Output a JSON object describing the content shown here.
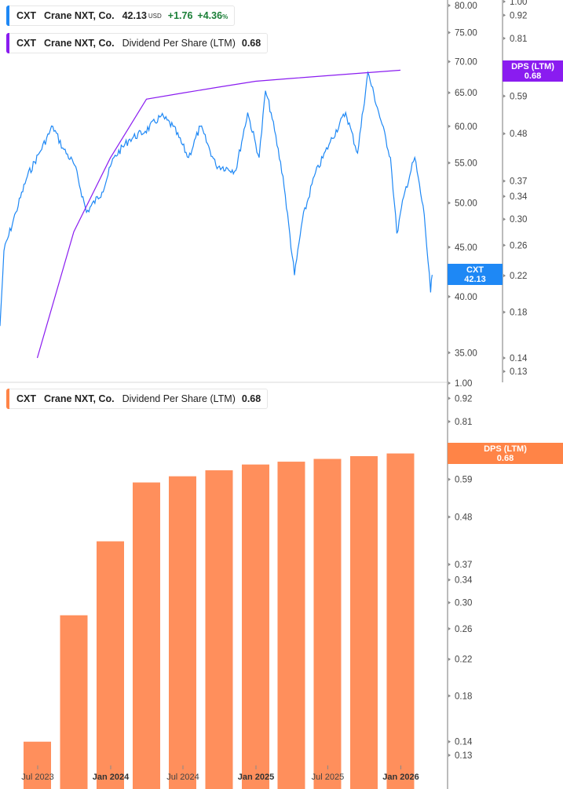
{
  "legend_price": {
    "ticker": "CXT",
    "company": "Crane NXT, Co.",
    "price": "42.13",
    "currency": "USD",
    "change": "+1.76",
    "change_pct": "+4.36",
    "pct_sign": "%"
  },
  "legend_dps_top": {
    "ticker": "CXT",
    "company": "Crane NXT, Co.",
    "metric": "Dividend Per Share (LTM)",
    "value": "0.68"
  },
  "legend_dps_bottom": {
    "ticker": "CXT",
    "company": "Crane NXT, Co.",
    "metric": "Dividend Per Share (LTM)",
    "value": "0.68"
  },
  "tags": {
    "price": {
      "line1": "CXT",
      "line2": "42.13"
    },
    "dps_top": {
      "line1": "DPS (LTM)",
      "line2": "0.68"
    },
    "dps_bottom": {
      "line1": "DPS (LTM)",
      "line2": "0.68"
    }
  },
  "colors": {
    "price": "#1e88f5",
    "dps_line": "#8a1cf0",
    "bars": "#ff8f5c",
    "bottom_tag": "#ff8447"
  },
  "chart_data": [
    {
      "type": "line",
      "series": [
        {
          "name": "CXT",
          "axis": "left",
          "scale": "log",
          "points": [
            [
              "2023-03-28",
              37.3
            ],
            [
              "2023-04-07",
              44.6
            ],
            [
              "2023-05-07",
              48.9
            ],
            [
              "2023-06-05",
              53.3
            ],
            [
              "2023-07-05",
              56.3
            ],
            [
              "2023-08-08",
              60.0
            ],
            [
              "2023-09-02",
              57.0
            ],
            [
              "2023-10-02",
              54.7
            ],
            [
              "2023-11-01",
              48.9
            ],
            [
              "2023-12-10",
              51.3
            ],
            [
              "2024-01-09",
              55.7
            ],
            [
              "2024-02-18",
              58.2
            ],
            [
              "2024-03-28",
              59.3
            ],
            [
              "2024-05-07",
              61.5
            ],
            [
              "2024-06-06",
              60.0
            ],
            [
              "2024-07-15",
              55.7
            ],
            [
              "2024-08-14",
              60.0
            ],
            [
              "2024-09-22",
              54.7
            ],
            [
              "2024-11-11",
              54.0
            ],
            [
              "2024-12-11",
              62.0
            ],
            [
              "2025-01-09",
              55.7
            ],
            [
              "2025-01-25",
              65.3
            ],
            [
              "2025-02-08",
              62.0
            ],
            [
              "2025-03-10",
              53.3
            ],
            [
              "2025-04-08",
              42.1
            ],
            [
              "2025-04-28",
              48.0
            ],
            [
              "2025-05-28",
              53.3
            ],
            [
              "2025-07-07",
              57.8
            ],
            [
              "2025-08-15",
              62.0
            ],
            [
              "2025-09-14",
              56.3
            ],
            [
              "2025-10-10",
              68.2
            ],
            [
              "2025-11-12",
              60.8
            ],
            [
              "2025-12-06",
              55.7
            ],
            [
              "2025-12-22",
              46.5
            ],
            [
              "2026-01-11",
              51.3
            ],
            [
              "2026-02-05",
              55.7
            ],
            [
              "2026-03-01",
              48.6
            ],
            [
              "2026-03-17",
              40.4
            ],
            [
              "2026-03-21",
              42.13
            ]
          ]
        },
        {
          "name": "DPS (LTM)",
          "axis": "right",
          "scale": "log",
          "points": [
            [
              "2023-06-30",
              0.14
            ],
            [
              "2023-09-30",
              0.28
            ],
            [
              "2023-12-31",
              0.42
            ],
            [
              "2024-03-31",
              0.58
            ],
            [
              "2024-06-30",
              0.6
            ],
            [
              "2024-09-30",
              0.62
            ],
            [
              "2024-12-31",
              0.64
            ],
            [
              "2025-03-31",
              0.65
            ],
            [
              "2025-06-30",
              0.66
            ],
            [
              "2025-09-30",
              0.67
            ],
            [
              "2025-12-31",
              0.68
            ]
          ]
        }
      ],
      "left_ticks": [
        "80.00",
        "75.00",
        "70.00",
        "65.00",
        "60.00",
        "55.00",
        "50.00",
        "45.00",
        "40.00",
        "35.00"
      ],
      "right_ticks": [
        "1.00",
        "0.92",
        "0.81",
        "0.59",
        "0.48",
        "0.37",
        "0.34",
        "0.30",
        "0.26",
        "0.22",
        "0.18",
        "0.14",
        "0.13"
      ]
    },
    {
      "type": "bar",
      "scale": "log",
      "categories": [
        "2023-06-30",
        "2023-09-30",
        "2023-12-31",
        "2024-03-31",
        "2024-06-30",
        "2024-09-30",
        "2024-12-31",
        "2025-03-31",
        "2025-06-30",
        "2025-09-30",
        "2025-12-31"
      ],
      "values": [
        0.14,
        0.28,
        0.42,
        0.58,
        0.6,
        0.62,
        0.64,
        0.65,
        0.66,
        0.67,
        0.68
      ],
      "y_ticks": [
        "1.00",
        "0.92",
        "0.81",
        "0.70",
        "0.59",
        "0.48",
        "0.37",
        "0.34",
        "0.30",
        "0.26",
        "0.22",
        "0.18",
        "0.14",
        "0.13"
      ],
      "x_ticks": [
        {
          "date": "2023-07-01",
          "label": "Jul 2023",
          "bold": false
        },
        {
          "date": "2024-01-01",
          "label": "Jan 2024",
          "bold": true
        },
        {
          "date": "2024-07-01",
          "label": "Jul 2024",
          "bold": false
        },
        {
          "date": "2025-01-01",
          "label": "Jan 2025",
          "bold": true
        },
        {
          "date": "2025-07-01",
          "label": "Jul 2025",
          "bold": false
        },
        {
          "date": "2026-01-01",
          "label": "Jan 2026",
          "bold": true
        }
      ]
    }
  ]
}
